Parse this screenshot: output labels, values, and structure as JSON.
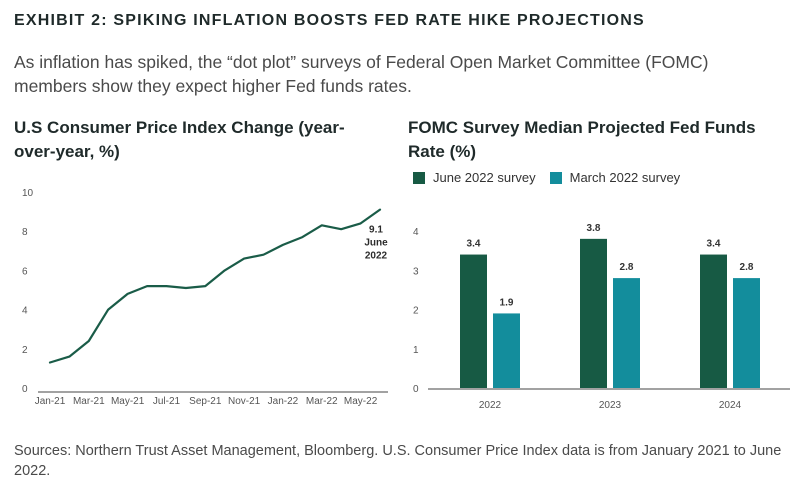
{
  "header": {
    "exhibit": "EXHIBIT 2: SPIKING INFLATION BOOSTS FED RATE HIKE PROJECTIONS",
    "subtitle": "As inflation has spiked, the “dot plot” surveys of Federal Open Market Committee (FOMC) members show they expect higher Fed funds rates."
  },
  "footer": {
    "sources": "Sources: Northern Trust Asset Management, Bloomberg. U.S. Consumer Price Index data is from January 2021 to June 2022."
  },
  "colors": {
    "line": "#1a5c48",
    "june": "#175a44",
    "march": "#138d9c",
    "axis": "#444444"
  },
  "chart_data": [
    {
      "type": "line",
      "title": "U.S Consumer Price Index Change (year-over-year, %)",
      "xlabel": "",
      "ylabel": "",
      "x": [
        "Jan-21",
        "Feb-21",
        "Mar-21",
        "Apr-21",
        "May-21",
        "Jun-21",
        "Jul-21",
        "Aug-21",
        "Sep-21",
        "Oct-21",
        "Nov-21",
        "Dec-21",
        "Jan-22",
        "Feb-22",
        "Mar-22",
        "Apr-22",
        "May-22",
        "Jun-22"
      ],
      "x_tick_labels": [
        "Jan-21",
        "Mar-21",
        "May-21",
        "Jul-21",
        "Sep-21",
        "Nov-21",
        "Jan-22",
        "Mar-22",
        "May-22"
      ],
      "series": [
        {
          "values": [
            1.3,
            1.6,
            2.4,
            4.0,
            4.8,
            5.2,
            5.2,
            5.1,
            5.2,
            6.0,
            6.6,
            6.8,
            7.3,
            7.7,
            8.3,
            8.1,
            8.4,
            9.1
          ]
        }
      ],
      "ylim": [
        0,
        10
      ],
      "yticks": [
        0,
        2,
        4,
        6,
        8,
        10
      ],
      "annotation": {
        "lines": [
          "9.1",
          "June",
          "2022"
        ]
      },
      "grid": false
    },
    {
      "type": "bar",
      "title": "FOMC Survey Median Projected Fed Funds Rate (%)",
      "xlabel": "",
      "ylabel": "",
      "categories": [
        "2022",
        "2023",
        "2024"
      ],
      "series": [
        {
          "name": "June 2022 survey",
          "values": [
            3.4,
            3.8,
            3.4
          ],
          "color": "#175a44"
        },
        {
          "name": "March 2022 survey",
          "values": [
            1.9,
            2.8,
            2.8
          ],
          "color": "#138d9c"
        }
      ],
      "ylim": [
        0,
        4
      ],
      "yticks": [
        0,
        1,
        2,
        3,
        4
      ],
      "legend": "top-left",
      "grid": false
    }
  ]
}
